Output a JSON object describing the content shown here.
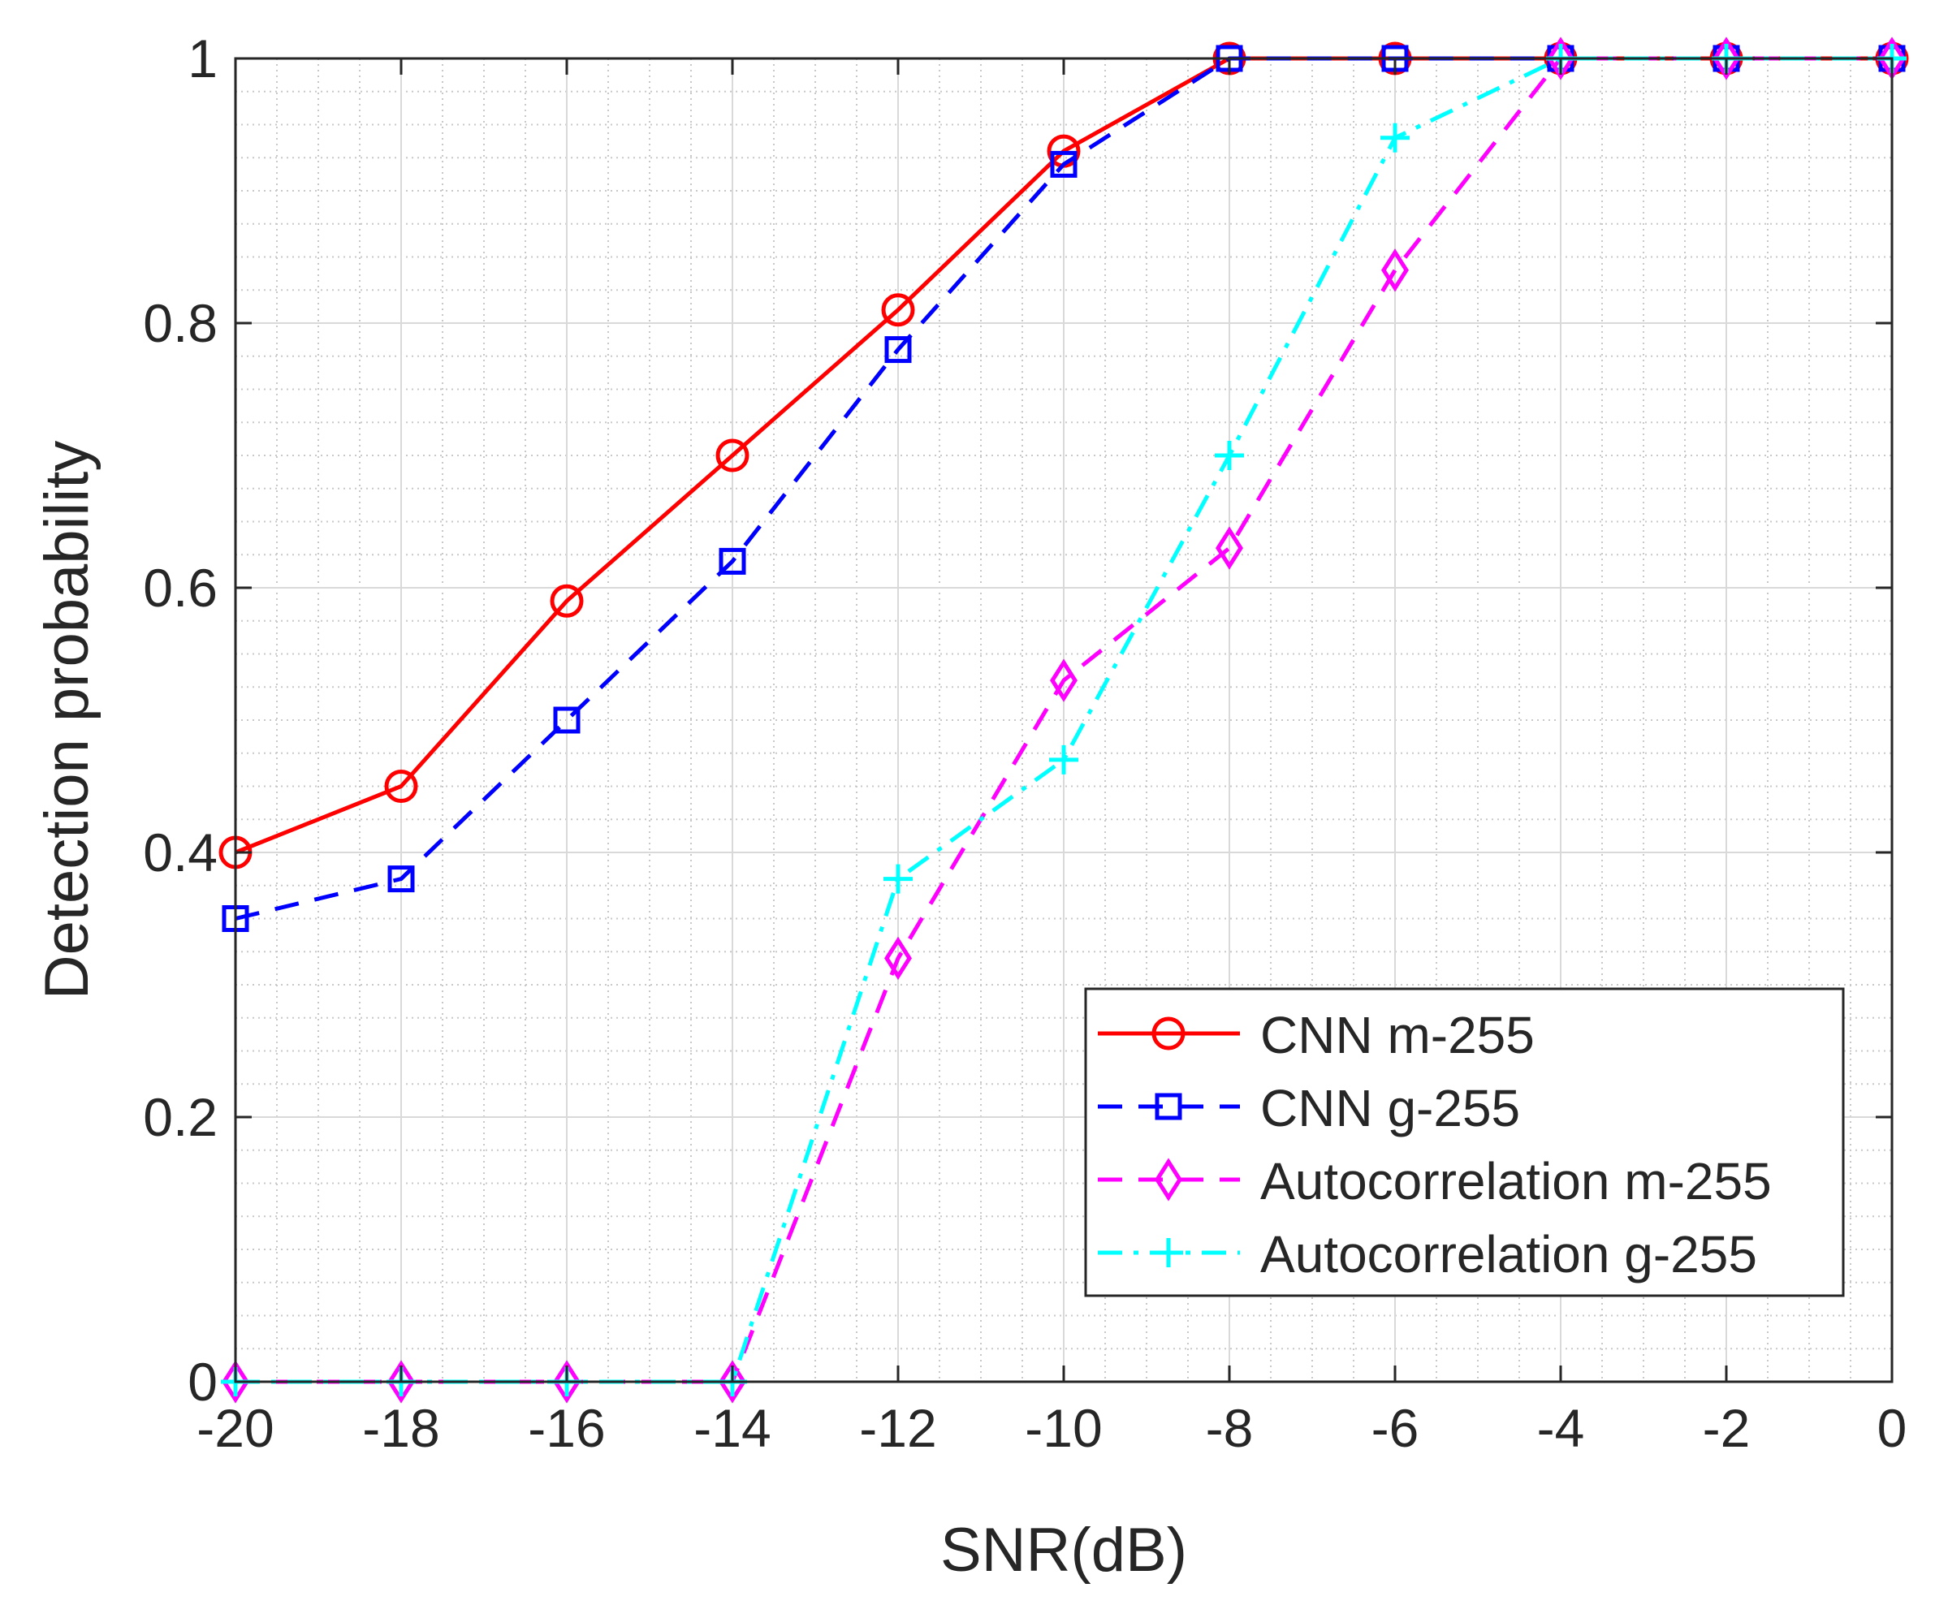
{
  "chart_data": {
    "type": "line",
    "title": "",
    "xlabel": "SNR(dB)",
    "ylabel": "Detection probability",
    "xlim": [
      -20,
      0
    ],
    "ylim": [
      0,
      1
    ],
    "xticks": [
      -20,
      -18,
      -16,
      -14,
      -12,
      -10,
      -8,
      -6,
      -4,
      -2,
      0
    ],
    "xtick_labels": [
      "-20",
      "-18",
      "-16",
      "-14",
      "-12",
      "-10",
      "-8",
      "-6",
      "-4",
      "-2",
      "0"
    ],
    "yticks": [
      0,
      0.2,
      0.4,
      0.6,
      0.8,
      1
    ],
    "ytick_labels": [
      "0",
      "0.2",
      "0.4",
      "0.6",
      "0.8",
      "1"
    ],
    "grid": "major and minor",
    "legend_position": "bottom-right",
    "x": [
      -20,
      -18,
      -16,
      -14,
      -12,
      -10,
      -8,
      -6,
      -4,
      -2,
      0
    ],
    "series": [
      {
        "name": "CNN m-255",
        "color": "#ff0000",
        "line": "solid",
        "marker": "circle",
        "values": [
          0.4,
          0.45,
          0.59,
          0.7,
          0.81,
          0.93,
          1.0,
          1.0,
          1.0,
          1.0,
          1.0
        ]
      },
      {
        "name": "CNN g-255",
        "color": "#0000ff",
        "line": "dashed",
        "marker": "square",
        "values": [
          0.35,
          0.38,
          0.5,
          0.62,
          0.78,
          0.92,
          1.0,
          1.0,
          1.0,
          1.0,
          1.0
        ]
      },
      {
        "name": "Autocorrelation m-255",
        "color": "#ff00ff",
        "line": "dashed",
        "marker": "diamond",
        "values": [
          0,
          0,
          0,
          0,
          0.32,
          0.53,
          0.63,
          0.84,
          1.0,
          1.0,
          1.0
        ]
      },
      {
        "name": "Autocorrelation g-255",
        "color": "#00ffff",
        "line": "dashdot",
        "marker": "plus",
        "values": [
          0,
          0,
          0,
          0,
          0.38,
          0.47,
          0.7,
          0.94,
          1.0,
          1.0,
          1.0
        ]
      }
    ]
  }
}
